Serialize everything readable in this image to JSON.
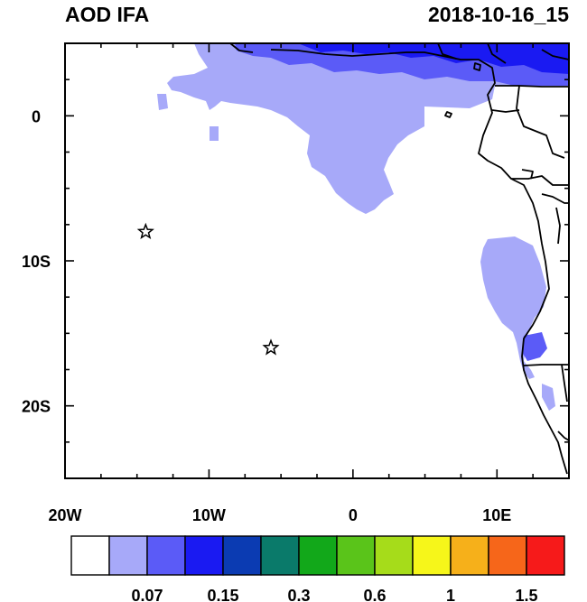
{
  "header": {
    "variable": "AOD IFA",
    "datetime": "2018-10-16_15"
  },
  "map": {
    "lon_range": [
      -20,
      15
    ],
    "lat_range": [
      -25,
      5
    ],
    "lon_ticks": [
      {
        "value": -20,
        "label": "20W"
      },
      {
        "value": -10,
        "label": "10W"
      },
      {
        "value": 0,
        "label": "0"
      },
      {
        "value": 10,
        "label": "10E"
      }
    ],
    "lat_ticks": [
      {
        "value": 0,
        "label": "0"
      },
      {
        "value": -10,
        "label": "10S"
      },
      {
        "value": -20,
        "label": "20S"
      }
    ],
    "markers": [
      {
        "name": "star-marker-1",
        "lon": -14.4,
        "lat": -8.0
      },
      {
        "name": "star-marker-2",
        "lon": -5.7,
        "lat": -16.0
      }
    ]
  },
  "colorbar": {
    "colors": [
      "#ffffff",
      "#a7a9f9",
      "#5b5bf7",
      "#1a1af2",
      "#0b3bb2",
      "#0a7a6a",
      "#12a81a",
      "#5ac41a",
      "#a6dc1a",
      "#f6f61a",
      "#f6b01a",
      "#f6661a",
      "#f61a1a"
    ],
    "labels": [
      "0.07",
      "0.15",
      "0.3",
      "0.6",
      "1",
      "1.5"
    ]
  }
}
